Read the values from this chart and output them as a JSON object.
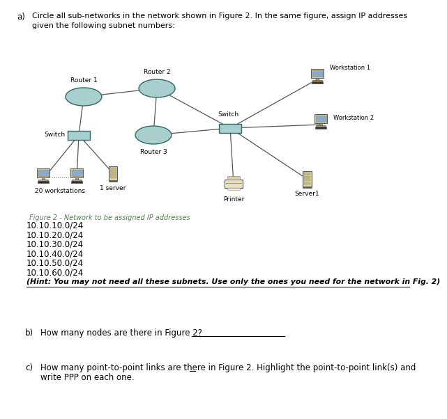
{
  "figure_caption": "Figure 2 - Network to be assigned IP addresses",
  "subnets": [
    "10.10.10.0/24",
    "10.10.20.0/24",
    "10.10.30.0/24",
    "10.10.40.0/24",
    "10.10.50.0/24",
    "10.10.60.0/24"
  ],
  "hint": "(Hint: You may not need all these subnets. Use only the ones you need for the network in Fig. 2)",
  "bg_color": "#ffffff",
  "figure_caption_color": "#5a7a5a",
  "router_color": "#a8cece",
  "switch_color": "#a8cece",
  "device_body_color": "#e8dfa0",
  "line_color": "#555555"
}
